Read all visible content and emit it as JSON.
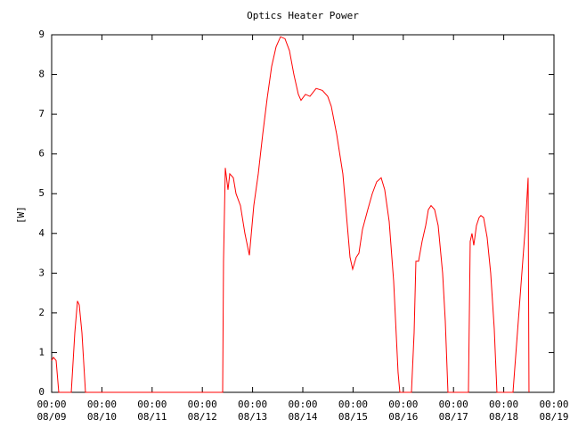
{
  "chart_data": {
    "type": "line",
    "title": "Optics Heater Power",
    "y_label": "[W]",
    "x": [
      "08/09 00:00",
      "08/09 00:51",
      "08/09 02:08",
      "08/09 03:24",
      "08/09 09:22",
      "08/09 11:04",
      "08/09 12:20",
      "08/09 13:11",
      "08/09 14:28",
      "08/09 16:10",
      "08/12 09:42",
      "08/12 10:07",
      "08/12 10:58",
      "08/12 12:15",
      "08/12 13:06",
      "08/12 14:48",
      "08/12 16:05",
      "08/12 18:12",
      "08/12 20:20",
      "08/12 22:28",
      "08/13 00:35",
      "08/13 02:43",
      "08/13 04:51",
      "08/13 06:58",
      "08/13 09:06",
      "08/13 11:14",
      "08/13 13:21",
      "08/13 15:29",
      "08/13 17:37",
      "08/13 19:44",
      "08/13 21:52",
      "08/13 23:08",
      "08/14 01:16",
      "08/14 03:24",
      "08/14 06:22",
      "08/14 09:21",
      "08/14 11:54",
      "08/14 13:36",
      "08/14 16:10",
      "08/14 19:08",
      "08/14 21:16",
      "08/14 22:33",
      "08/14 23:49",
      "08/15 01:31",
      "08/15 02:48",
      "08/15 04:30",
      "08/15 07:03",
      "08/15 09:11",
      "08/15 11:18",
      "08/15 13:26",
      "08/15 15:08",
      "08/15 17:16",
      "08/15 19:24",
      "08/15 21:31",
      "08/15 22:22",
      "08/16 03:54",
      "08/16 05:11",
      "08/16 06:02",
      "08/16 07:18",
      "08/16 09:00",
      "08/16 10:43",
      "08/16 11:59",
      "08/16 13:16",
      "08/16 14:58",
      "08/16 16:40",
      "08/16 18:48",
      "08/16 20:04",
      "08/16 21:21",
      "08/17 07:08",
      "08/17 07:59",
      "08/17 08:50",
      "08/17 09:41",
      "08/17 10:58",
      "08/17 12:14",
      "08/17 13:05",
      "08/17 14:22",
      "08/17 16:04",
      "08/17 17:46",
      "08/17 19:28",
      "08/17 20:45",
      "08/18 04:25",
      "08/18 06:07",
      "08/18 08:14",
      "08/18 10:22",
      "08/18 11:39",
      "08/18 12:04"
    ],
    "series": [
      {
        "name": "Optics Heater Power",
        "color": "#ff0000",
        "values": [
          0.8,
          0.88,
          0.8,
          0,
          0,
          1.5,
          2.3,
          2.2,
          1.5,
          0,
          0,
          3.3,
          5.65,
          5.1,
          5.5,
          5.4,
          5.0,
          4.7,
          4.0,
          3.45,
          4.7,
          5.5,
          6.5,
          7.4,
          8.2,
          8.7,
          8.95,
          8.9,
          8.6,
          8.0,
          7.5,
          7.35,
          7.5,
          7.45,
          7.65,
          7.6,
          7.45,
          7.2,
          6.5,
          5.5,
          4.2,
          3.4,
          3.1,
          3.4,
          3.5,
          4.1,
          4.6,
          5.0,
          5.3,
          5.4,
          5.1,
          4.3,
          2.8,
          0.5,
          0,
          0,
          1.5,
          3.3,
          3.3,
          3.8,
          4.2,
          4.6,
          4.7,
          4.6,
          4.2,
          3.0,
          1.8,
          0,
          0,
          3.8,
          4.0,
          3.7,
          4.2,
          4.4,
          4.45,
          4.4,
          3.9,
          3.0,
          1.6,
          0,
          0,
          1.2,
          2.7,
          4.2,
          5.4,
          0
        ]
      }
    ],
    "xlim": [
      "08/09 00:00",
      "08/19 00:00"
    ],
    "xticks": [
      {
        "value": "08/09 00:00",
        "label": [
          "00:00",
          "08/09"
        ]
      },
      {
        "value": "08/10 00:00",
        "label": [
          "00:00",
          "08/10"
        ]
      },
      {
        "value": "08/11 00:00",
        "label": [
          "00:00",
          "08/11"
        ]
      },
      {
        "value": "08/12 00:00",
        "label": [
          "00:00",
          "08/12"
        ]
      },
      {
        "value": "08/13 00:00",
        "label": [
          "00:00",
          "08/13"
        ]
      },
      {
        "value": "08/14 00:00",
        "label": [
          "00:00",
          "08/14"
        ]
      },
      {
        "value": "08/15 00:00",
        "label": [
          "00:00",
          "08/15"
        ]
      },
      {
        "value": "08/16 00:00",
        "label": [
          "00:00",
          "08/16"
        ]
      },
      {
        "value": "08/17 00:00",
        "label": [
          "00:00",
          "08/17"
        ]
      },
      {
        "value": "08/18 00:00",
        "label": [
          "00:00",
          "08/18"
        ]
      },
      {
        "value": "08/19 00:00",
        "label": [
          "00:00",
          "08/19"
        ]
      }
    ],
    "ylim": [
      0,
      9
    ],
    "yticks": [
      0,
      1,
      2,
      3,
      4,
      5,
      6,
      7,
      8,
      9
    ],
    "grid": false
  }
}
